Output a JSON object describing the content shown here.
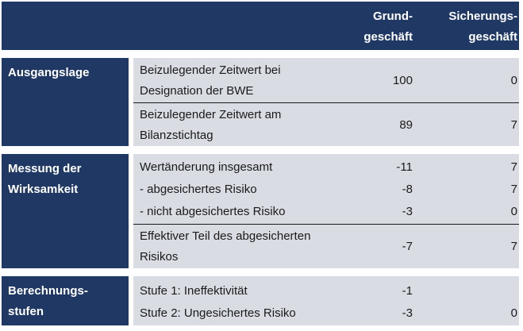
{
  "header": {
    "col1_line1": "Grund-",
    "col1_line2": "geschäft",
    "col2_line1": "Sicherungs-",
    "col2_line2": "geschäft"
  },
  "sections": [
    {
      "label_line1": "Ausgangslage",
      "rows": [
        {
          "desc_line1": "Beizulegender Zeitwert bei",
          "desc_line2": "Designation der BWE",
          "grund": "100",
          "sicherung": "0"
        },
        {
          "desc_line1": "Beizulegender Zeitwert am",
          "desc_line2": "Bilanzstichtag",
          "grund": "89",
          "sicherung": "7"
        }
      ]
    },
    {
      "label_line1": "Messung der",
      "label_line2": "Wirksamkeit",
      "rows": [
        {
          "desc": "Wertänderung insgesamt",
          "grund": "-11",
          "sicherung": "7"
        },
        {
          "desc": "- abgesichertes Risiko",
          "grund": "-8",
          "sicherung": "7"
        },
        {
          "desc": "- nicht abgesichertes Risiko",
          "grund": "-3",
          "sicherung": "0"
        },
        {
          "desc_line1": "Effektiver Teil des abgesicherten",
          "desc_line2": "Risikos",
          "grund": "-7",
          "sicherung": "7"
        }
      ]
    },
    {
      "label_line1": "Berechnungs-",
      "label_line2": "stufen",
      "rows": [
        {
          "desc": "Stufe 1: Ineffektivität",
          "grund": "-1",
          "sicherung": ""
        },
        {
          "desc": "Stufe 2:  Ungesichertes Risiko",
          "grund": "-3",
          "sicherung": "0"
        }
      ]
    }
  ],
  "colors": {
    "header_bg": "#1f3864",
    "cell_bg": "#d9dde3"
  }
}
